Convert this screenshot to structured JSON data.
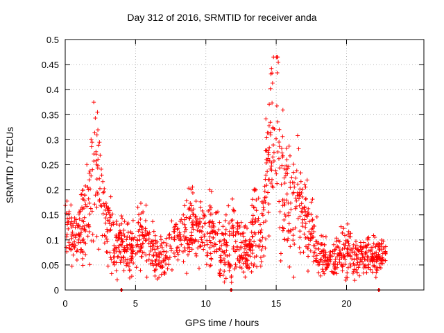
{
  "chart_data": {
    "type": "scatter",
    "title": "Day 312 of 2016, SRMTID for receiver anda",
    "xlabel": "GPS time / hours",
    "ylabel": "SRMTID / TECUs",
    "xlim": [
      0,
      25.5
    ],
    "ylim": [
      0,
      0.5
    ],
    "xticks": [
      0,
      5,
      10,
      15,
      20
    ],
    "xtick_labels": [
      "0",
      "5",
      "10",
      "15",
      "20"
    ],
    "yticks": [
      0,
      0.05,
      0.1,
      0.15,
      0.2,
      0.25,
      0.3,
      0.35,
      0.4,
      0.45,
      0.5
    ],
    "ytick_labels": [
      "0",
      "0.05",
      "0.1",
      "0.15",
      "0.2",
      "0.25",
      "0.3",
      "0.35",
      "0.4",
      "0.45",
      "0.5"
    ],
    "grid": true,
    "series": [
      {
        "name": "SRMTID",
        "color": "#ff0000",
        "marker": "plus",
        "envelope": [
          [
            0.0,
            0.12,
            0.035
          ],
          [
            0.5,
            0.11,
            0.03
          ],
          [
            1.0,
            0.11,
            0.03
          ],
          [
            1.5,
            0.15,
            0.05
          ],
          [
            2.0,
            0.22,
            0.07
          ],
          [
            2.3,
            0.24,
            0.06
          ],
          [
            2.7,
            0.17,
            0.04
          ],
          [
            3.0,
            0.13,
            0.035
          ],
          [
            3.5,
            0.09,
            0.03
          ],
          [
            4.0,
            0.09,
            0.025
          ],
          [
            4.5,
            0.08,
            0.025
          ],
          [
            5.0,
            0.09,
            0.03
          ],
          [
            5.5,
            0.11,
            0.03
          ],
          [
            6.0,
            0.09,
            0.03
          ],
          [
            6.5,
            0.07,
            0.025
          ],
          [
            7.0,
            0.06,
            0.02
          ],
          [
            7.5,
            0.09,
            0.03
          ],
          [
            8.0,
            0.1,
            0.025
          ],
          [
            8.5,
            0.11,
            0.03
          ],
          [
            9.0,
            0.13,
            0.035
          ],
          [
            9.5,
            0.11,
            0.03
          ],
          [
            10.0,
            0.1,
            0.03
          ],
          [
            10.5,
            0.12,
            0.04
          ],
          [
            11.0,
            0.08,
            0.025
          ],
          [
            11.5,
            0.09,
            0.03
          ],
          [
            12.0,
            0.11,
            0.035
          ],
          [
            12.5,
            0.08,
            0.025
          ],
          [
            13.0,
            0.07,
            0.02
          ],
          [
            13.5,
            0.12,
            0.05
          ],
          [
            14.0,
            0.1,
            0.03
          ],
          [
            14.3,
            0.22,
            0.08
          ],
          [
            14.7,
            0.3,
            0.08
          ],
          [
            15.0,
            0.36,
            0.08
          ],
          [
            15.3,
            0.24,
            0.07
          ],
          [
            15.7,
            0.2,
            0.07
          ],
          [
            16.0,
            0.17,
            0.06
          ],
          [
            16.5,
            0.17,
            0.06
          ],
          [
            17.0,
            0.14,
            0.04
          ],
          [
            17.5,
            0.11,
            0.035
          ],
          [
            18.0,
            0.08,
            0.025
          ],
          [
            18.5,
            0.06,
            0.02
          ],
          [
            19.0,
            0.055,
            0.02
          ],
          [
            19.5,
            0.07,
            0.025
          ],
          [
            20.0,
            0.08,
            0.025
          ],
          [
            20.5,
            0.07,
            0.02
          ],
          [
            21.0,
            0.065,
            0.02
          ],
          [
            21.5,
            0.065,
            0.02
          ],
          [
            22.0,
            0.065,
            0.02
          ],
          [
            22.5,
            0.07,
            0.015
          ],
          [
            22.8,
            0.075,
            0.015
          ]
        ],
        "n_points": 1500
      }
    ],
    "zero_markers_x": [
      4.0,
      11.8,
      22.3
    ]
  }
}
